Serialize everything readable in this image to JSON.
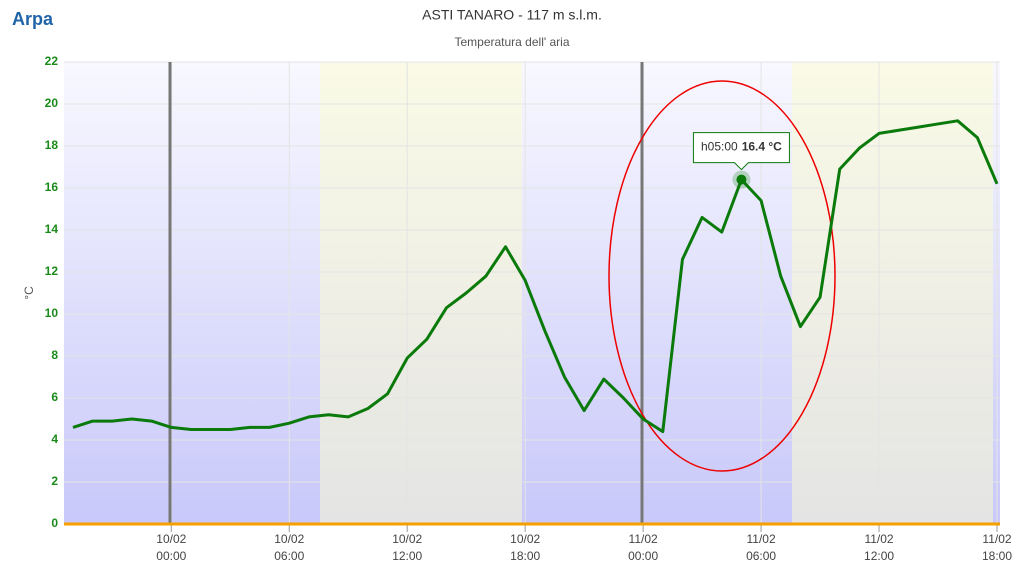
{
  "logo": "Arpa",
  "chart_data": {
    "type": "line",
    "title": "ASTI TANARO - 117 m s.l.m.",
    "subtitle": "Temperatura dell' aria",
    "y_label": "°C",
    "categories": [
      null,
      null,
      null,
      null,
      null,
      "10/02 00:00",
      null,
      null,
      null,
      null,
      null,
      "10/02 06:00",
      null,
      null,
      null,
      null,
      null,
      "10/02 12:00",
      null,
      null,
      null,
      null,
      null,
      "10/02 18:00",
      null,
      null,
      null,
      null,
      null,
      "11/02 00:00",
      null,
      null,
      null,
      null,
      null,
      "11/02 06:00",
      null,
      null,
      null,
      null,
      null,
      "11/02 12:00",
      null,
      null,
      null,
      null,
      null,
      "11/02 18:00"
    ],
    "series": [
      {
        "name": "Temperatura dell' aria",
        "color": "#0a7a0a",
        "values": [
          4.6,
          4.9,
          4.9,
          5.0,
          4.9,
          4.6,
          4.5,
          4.5,
          4.5,
          4.6,
          4.6,
          4.8,
          5.1,
          5.2,
          5.1,
          5.5,
          6.2,
          7.9,
          8.8,
          10.3,
          11.0,
          11.8,
          13.2,
          11.6,
          9.2,
          7.0,
          5.4,
          6.9,
          6.0,
          5.0,
          4.4,
          12.6,
          14.6,
          13.9,
          16.4,
          15.4,
          11.8,
          9.4,
          10.8,
          16.9,
          17.9,
          18.6,
          18.75,
          18.9,
          19.05,
          19.2,
          18.4,
          16.2
        ]
      }
    ],
    "ylim": [
      0,
      22
    ],
    "yticks": [
      0,
      2,
      4,
      6,
      8,
      10,
      12,
      14,
      16,
      18,
      20,
      22
    ],
    "grid": true,
    "tooltip": {
      "index": 34,
      "time": "h05:00",
      "value": "16.4 °C"
    }
  }
}
